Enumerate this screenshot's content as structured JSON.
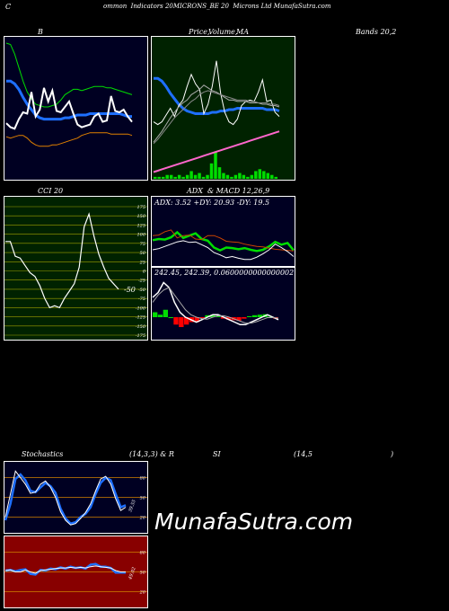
{
  "header": {
    "left": "C",
    "title": "ommon  Indicators 20MICRONS_BE 20  Microns Ltd MunafaSutra.com"
  },
  "labels": {
    "bb": "B",
    "price": "Price,",
    "volume": "Volume,",
    "ma": "MA",
    "bands": "Bands 20,2",
    "cci": "CCI 20",
    "adx_macd": "ADX  & MACD 12,26,9",
    "adx_values": "ADX: 3.52  +DY: 20.93 -DY: 19.5",
    "macd_values": "242.45,  242.39,  0.0600000000000002",
    "stoch": "Stochastics",
    "stoch_params": "(14,3,3) & R",
    "rsi": "SI",
    "rsi_params": "(14,5",
    "rsi_close": ")"
  },
  "watermark": "MunafaSutra.com",
  "colors": {
    "bb_bg": "#000022",
    "price_bg": "#002200",
    "cci_bg": "#002200",
    "adx_bg": "#000022",
    "stoch_bg": "#000022",
    "rsi_bg": "#880000",
    "border": "#ffffff",
    "white": "#ffffff",
    "blue": "#1e6fff",
    "green": "#00dd00",
    "orange": "#e08000",
    "pink": "#ff66cc",
    "red": "#ff0000",
    "grid": "#d08000",
    "cci_grid": "#a0a000"
  },
  "chart_data": [
    {
      "type": "line",
      "name": "bollinger",
      "ylim": [
        0,
        100
      ],
      "series": [
        {
          "color": "#00dd00",
          "values": [
            98,
            97,
            90,
            80,
            70,
            62,
            57,
            53,
            52,
            51,
            51,
            52,
            53,
            56,
            60,
            62,
            64,
            64,
            63,
            64,
            65,
            66,
            66,
            66,
            65,
            65,
            64,
            63,
            62,
            61,
            60
          ]
        },
        {
          "color": "#1e6fff",
          "values": [
            70,
            70,
            68,
            64,
            58,
            53,
            49,
            45,
            43,
            42,
            42,
            42,
            42,
            42,
            43,
            43,
            44,
            45,
            45,
            45,
            46,
            46,
            46,
            46,
            46,
            46,
            46,
            46,
            45,
            44,
            44
          ]
        },
        {
          "color": "#e08000",
          "values": [
            29,
            28,
            29,
            30,
            30,
            28,
            25,
            23,
            22,
            22,
            22,
            23,
            23,
            24,
            25,
            26,
            27,
            28,
            30,
            31,
            32,
            32,
            32,
            32,
            32,
            31,
            31,
            31,
            31,
            31,
            30
          ]
        },
        {
          "color": "#ffffff",
          "values": [
            39,
            36,
            35,
            42,
            47,
            46,
            62,
            44,
            49,
            65,
            55,
            63,
            48,
            47,
            51,
            55,
            46,
            38,
            36,
            37,
            38,
            44,
            46,
            40,
            41,
            59,
            48,
            47,
            49,
            44,
            40
          ]
        }
      ]
    },
    {
      "type": "line",
      "name": "price_ma",
      "ylim": [
        0,
        100
      ],
      "series": [
        {
          "color": "#1e6fff",
          "values": [
            72,
            72,
            70,
            66,
            61,
            57,
            53,
            50,
            48,
            47,
            46,
            46,
            46,
            46,
            47,
            47,
            48,
            48,
            49,
            49,
            50,
            50,
            50,
            50,
            50,
            50,
            50,
            49,
            49,
            49,
            48
          ]
        },
        {
          "color": "#ffffff",
          "values": [
            40,
            38,
            40,
            45,
            50,
            44,
            52,
            56,
            66,
            75,
            68,
            64,
            46,
            53,
            66,
            85,
            61,
            47,
            40,
            38,
            42,
            52,
            55,
            56,
            55,
            62,
            71,
            55,
            56,
            47,
            44
          ]
        },
        {
          "color": "#aaaaaa",
          "values": [
            25,
            29,
            33,
            38,
            43,
            47,
            51,
            54,
            56,
            60,
            62,
            64,
            67,
            65,
            63,
            62,
            60,
            58,
            56,
            56,
            55,
            55,
            55,
            54,
            54,
            54,
            53,
            53,
            52,
            52,
            51
          ]
        },
        {
          "color": "#888888",
          "values": [
            24,
            27,
            31,
            35,
            39,
            43,
            46,
            49,
            52,
            55,
            57,
            60,
            62,
            63,
            62,
            61,
            60,
            59,
            58,
            57,
            56,
            56,
            56,
            55,
            55,
            54,
            54,
            54,
            53,
            53,
            52
          ]
        }
      ],
      "volume": [
        1,
        1,
        1,
        2,
        2,
        1,
        2,
        1,
        2,
        4,
        2,
        3,
        1,
        2,
        8,
        14,
        6,
        3,
        2,
        1,
        2,
        3,
        2,
        1,
        2,
        4,
        5,
        4,
        3,
        2,
        1
      ],
      "trend": [
        3,
        4,
        5,
        6,
        7,
        8,
        9,
        10,
        11,
        12,
        13,
        14,
        15,
        16,
        17,
        18,
        19,
        20,
        21,
        22,
        23,
        24,
        25,
        26,
        27,
        28,
        29,
        30,
        31,
        32,
        33
      ]
    },
    {
      "type": "line",
      "name": "cci",
      "ylim": [
        -175,
        175
      ],
      "ticks": [
        175,
        150,
        125,
        100,
        75,
        50,
        25,
        0,
        -25,
        -50,
        -75,
        -100,
        -125,
        -150,
        -175
      ],
      "values": [
        80,
        80,
        40,
        35,
        15,
        -5,
        -15,
        -40,
        -75,
        -100,
        -95,
        -100,
        -75,
        -55,
        -35,
        10,
        120,
        155,
        95,
        45,
        10,
        -20,
        -35,
        -50
      ],
      "last_label": "-50"
    },
    {
      "type": "line",
      "name": "adx",
      "ylim": [
        0,
        100
      ],
      "series": [
        {
          "color": "#00dd00",
          "values": [
            44,
            46,
            45,
            49,
            58,
            48,
            52,
            56,
            46,
            43,
            31,
            26,
            31,
            30,
            28,
            30,
            27,
            25,
            27,
            33,
            41,
            36,
            39,
            26
          ]
        },
        {
          "color": "#cc4400",
          "values": [
            52,
            53,
            59,
            62,
            48,
            52,
            53,
            46,
            45,
            52,
            52,
            48,
            42,
            41,
            40,
            37,
            35,
            33,
            32,
            30,
            28,
            27,
            26,
            25
          ]
        },
        {
          "color": "#ffffff",
          "values": [
            27,
            29,
            33,
            37,
            41,
            43,
            40,
            41,
            36,
            31,
            22,
            18,
            13,
            15,
            12,
            10,
            10,
            14,
            20,
            27,
            37,
            31,
            24,
            15
          ]
        }
      ]
    },
    {
      "type": "line",
      "name": "macd",
      "ylim": [
        -40,
        80
      ],
      "series": [
        {
          "color": "#ffffff",
          "values": [
            40,
            50,
            70,
            60,
            30,
            10,
            0,
            -5,
            -10,
            -5,
            0,
            5,
            5,
            0,
            -5,
            -10,
            -15,
            -15,
            -10,
            -5,
            0,
            5,
            0,
            -5
          ]
        },
        {
          "color": "#aaaaaa",
          "values": [
            30,
            45,
            55,
            60,
            45,
            30,
            15,
            5,
            0,
            -3,
            -4,
            0,
            3,
            3,
            0,
            -4,
            -8,
            -12,
            -12,
            -9,
            -5,
            -1,
            -1,
            -2
          ]
        }
      ],
      "histogram": [
        10,
        5,
        15,
        0,
        -15,
        -20,
        -15,
        -10,
        -10,
        -2,
        4,
        5,
        2,
        -3,
        -5,
        -6,
        -7,
        -3,
        2,
        4,
        5,
        6,
        1,
        -3
      ]
    },
    {
      "type": "line",
      "name": "stochastics",
      "ylim": [
        0,
        100
      ],
      "ticks": [
        80,
        50,
        20
      ],
      "series": [
        {
          "color": "#1e6fff",
          "values": [
            15,
            40,
            78,
            85,
            76,
            60,
            58,
            65,
            72,
            67,
            57,
            33,
            18,
            10,
            12,
            20,
            25,
            35,
            55,
            72,
            80,
            76,
            55,
            35,
            38
          ]
        },
        {
          "color": "#ffffff",
          "values": [
            20,
            55,
            90,
            80,
            70,
            56,
            58,
            70,
            75,
            65,
            50,
            28,
            15,
            8,
            10,
            18,
            27,
            40,
            60,
            78,
            82,
            70,
            48,
            30,
            35
          ]
        }
      ],
      "last_label": "39.55"
    },
    {
      "type": "line",
      "name": "rsi",
      "ylim": [
        0,
        100
      ],
      "ticks": [
        80,
        50,
        20
      ],
      "series": [
        {
          "color": "#1e6fff",
          "values": [
            52,
            53,
            51,
            53,
            54,
            47,
            46,
            53,
            52,
            55,
            54,
            57,
            55,
            58,
            56,
            57,
            55,
            61,
            62,
            58,
            58,
            56,
            49,
            49,
            49
          ]
        },
        {
          "color": "#ffffff",
          "values": [
            52,
            53,
            50,
            50,
            53,
            50,
            48,
            52,
            53,
            54,
            55,
            56,
            56,
            57,
            56,
            57,
            56,
            58,
            59,
            58,
            57,
            56,
            52,
            50,
            50
          ]
        }
      ],
      "last_label": "49.02"
    }
  ]
}
